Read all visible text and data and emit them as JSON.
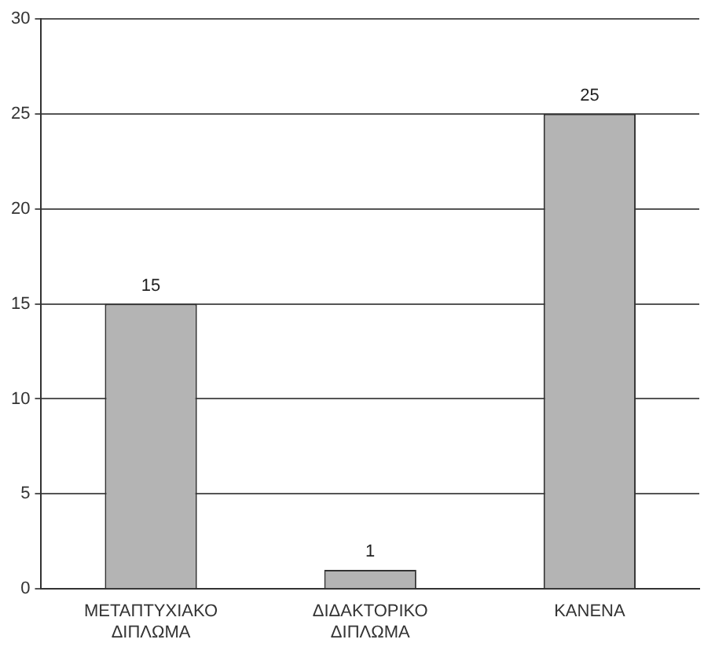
{
  "chart_data": {
    "type": "bar",
    "categories": [
      "ΜΕΤΑΠΤΥΧΙΑΚΟ ΔΙΠΛΩΜΑ",
      "ΔΙΔΑΚΤΟΡΙΚΟ ΔΙΠΛΩΜΑ",
      "ΚΑΝΕΝΑ"
    ],
    "values": [
      15,
      1,
      25
    ],
    "color": "#b4b4b4",
    "ylim": [
      0,
      30
    ],
    "yticks": [
      0,
      5,
      10,
      15,
      20,
      25,
      30
    ],
    "grid": "y",
    "data_labels": true,
    "legend": false
  }
}
